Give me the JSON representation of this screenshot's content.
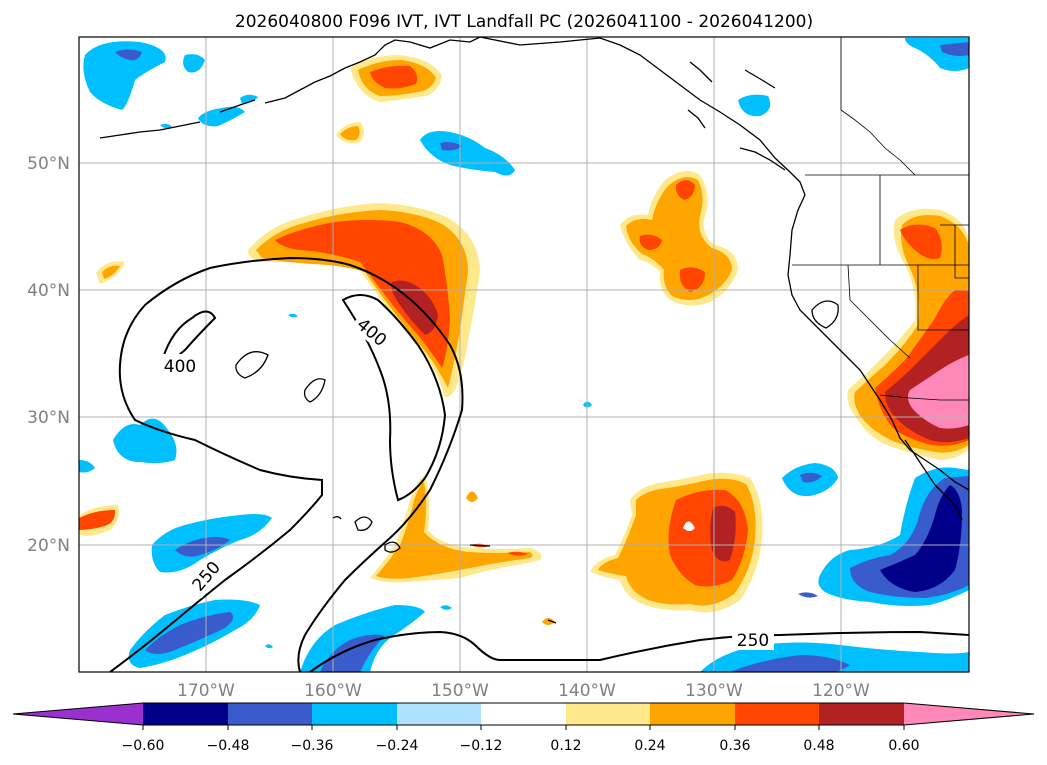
{
  "title": "2026040800 F096 IVT, IVT Landfall PC (2026041100 - 2026041200)",
  "lat_labels": [
    "50°N",
    "40°N",
    "30°N",
    "20°N"
  ],
  "lon_labels": [
    "170°W",
    "160°W",
    "150°W",
    "140°W",
    "130°W",
    "120°W"
  ],
  "contour_labels": [
    "400",
    "400",
    "250",
    "250"
  ],
  "colorbar": {
    "tick_labels": [
      "−0.60",
      "−0.48",
      "−0.36",
      "−0.24",
      "−0.12",
      "0.12",
      "0.24",
      "0.36",
      "0.48",
      "0.60"
    ],
    "colors": [
      "#9b30d0",
      "#00008b",
      "#3a5bcc",
      "#00bfff",
      "#b0e2ff",
      "#ffffff",
      "#ffe88a",
      "#ffa500",
      "#ff4500",
      "#b22222",
      "#ff88b8"
    ]
  }
}
